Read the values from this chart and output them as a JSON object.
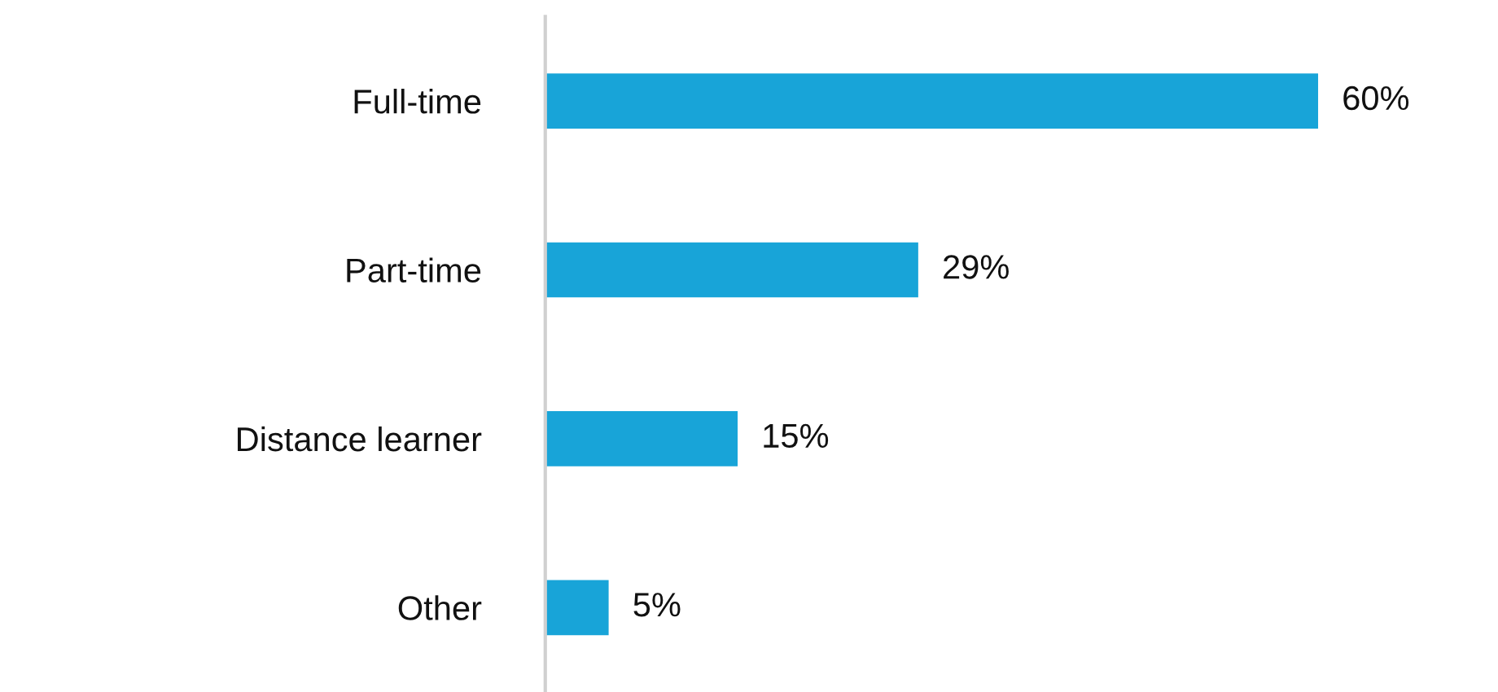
{
  "chart_data": {
    "type": "bar",
    "orientation": "horizontal",
    "categories": [
      "Full-time",
      "Part-time",
      "Distance learner",
      "Other"
    ],
    "values": [
      60,
      29,
      15,
      5
    ],
    "value_labels": [
      "60%",
      "29%",
      "15%",
      "5%"
    ],
    "color": "#18a4d8",
    "grid": false,
    "legend": false,
    "tick_labels": "y"
  }
}
